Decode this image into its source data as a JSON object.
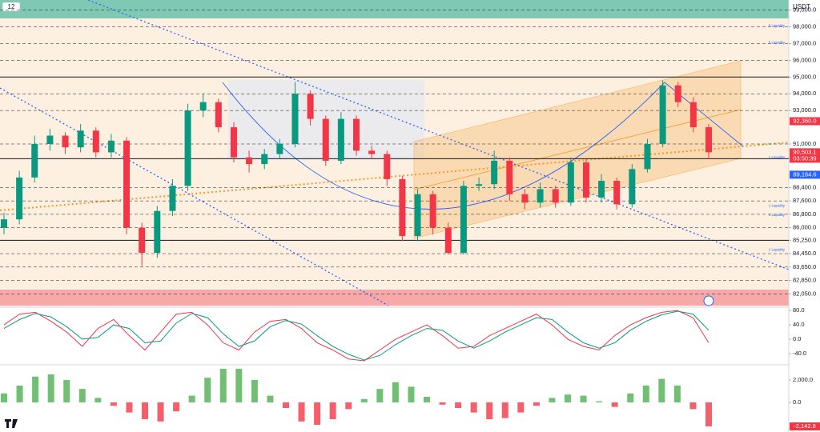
{
  "header": {
    "badge": "12",
    "currency": "USDT"
  },
  "chart_data": [
    {
      "type": "candlestick",
      "open": [
        86000,
        86500,
        89000,
        91000,
        91500,
        90800,
        91800,
        90500,
        91200,
        86000,
        84500,
        87000,
        88500,
        93000,
        93500,
        92000,
        90200,
        89800,
        90400,
        91000,
        94000,
        92500,
        90000,
        92500,
        90600,
        90400,
        88900,
        85500,
        88000,
        86000,
        84500,
        88500,
        88600,
        90000,
        88000,
        87500,
        88300,
        87500,
        89900,
        87800,
        88800,
        87400,
        89500,
        91000,
        94500,
        93500,
        92000
      ],
      "high": [
        86900,
        89400,
        91500,
        91900,
        91700,
        92200,
        92000,
        91600,
        91400,
        86300,
        87300,
        88900,
        93400,
        94000,
        93700,
        92300,
        90600,
        90700,
        91300,
        94700,
        94200,
        92700,
        92900,
        92700,
        90900,
        90600,
        89100,
        88300,
        88200,
        86300,
        88800,
        89000,
        90600,
        90200,
        88300,
        88700,
        88500,
        90200,
        90100,
        89200,
        89000,
        89800,
        91300,
        94800,
        94700,
        93800,
        92200
      ],
      "low": [
        85600,
        86200,
        88700,
        90600,
        90400,
        90500,
        90200,
        90200,
        85600,
        83700,
        84200,
        86700,
        88200,
        92600,
        91700,
        89900,
        89300,
        89500,
        90100,
        90800,
        92100,
        89700,
        89800,
        90300,
        90100,
        88500,
        85200,
        85200,
        85600,
        84400,
        84400,
        88200,
        88300,
        87600,
        87100,
        87200,
        87200,
        87300,
        87500,
        87500,
        87100,
        87200,
        89300,
        90800,
        93200,
        91700,
        90100
      ],
      "close": [
        86500,
        89000,
        91000,
        91500,
        90800,
        91800,
        90500,
        91200,
        86000,
        84500,
        87000,
        88500,
        93000,
        93500,
        92000,
        90200,
        89800,
        90400,
        91000,
        94000,
        92500,
        90000,
        92500,
        90600,
        90400,
        88900,
        85500,
        88000,
        86000,
        84500,
        88500,
        88600,
        90000,
        88000,
        87500,
        88300,
        87500,
        89900,
        87800,
        88800,
        87400,
        89500,
        91000,
        94500,
        93500,
        92000,
        90503.1
      ],
      "up_color": "#089981",
      "down_color": "#f23645",
      "ylim": [
        81300,
        99600
      ],
      "yticks": [
        {
          "value": 99000,
          "label": "99,000.0"
        },
        {
          "value": 98000,
          "label": "98,000.0"
        },
        {
          "value": 97000,
          "label": "97,000.0"
        },
        {
          "value": 96000,
          "label": "96,000.0"
        },
        {
          "value": 95000,
          "label": "95,000.0"
        },
        {
          "value": 94000,
          "label": "94,000.0"
        },
        {
          "value": 93000,
          "label": "93,000.0"
        },
        {
          "value": 91000,
          "label": "91,000.0"
        },
        {
          "value": 88400,
          "label": "88,400.0"
        },
        {
          "value": 87600,
          "label": "87,600.0"
        },
        {
          "value": 86800,
          "label": "86,800.0"
        },
        {
          "value": 86000,
          "label": "86,000.0"
        },
        {
          "value": 85250,
          "label": "85,250.0"
        },
        {
          "value": 84450,
          "label": "84,450.0"
        },
        {
          "value": 83650,
          "label": "83,650.0"
        },
        {
          "value": 82850,
          "label": "82,850.0"
        },
        {
          "value": 82050,
          "label": "82,050.0"
        }
      ],
      "levels": [
        95000,
        90120,
        85250
      ],
      "price_tags": [
        {
          "value": 92360,
          "label": "92,360.0",
          "color": "#f23645"
        },
        {
          "value": 90503.1,
          "label": "90,503.1",
          "sub": "03:50:39",
          "color": "#f23645"
        },
        {
          "value": 89164.6,
          "label": "89,164.6",
          "color": "#2962ff"
        }
      ],
      "annotations": [
        {
          "text": "5 Liquidity",
          "value": 98000
        },
        {
          "text": "5 Liquidity",
          "value": 97000
        },
        {
          "text": "1 Liquidity",
          "value": 90150
        },
        {
          "text": "1 Liquidity",
          "value": 87250
        },
        {
          "text": "1 Liquidity",
          "value": 86700
        },
        {
          "text": "1 Liquidity",
          "value": 84630
        }
      ]
    },
    {
      "type": "line",
      "series": [
        {
          "color": "#f23645",
          "values": [
            40,
            70,
            75,
            50,
            20,
            -20,
            30,
            55,
            10,
            -30,
            20,
            70,
            75,
            40,
            -10,
            -30,
            20,
            50,
            55,
            30,
            -10,
            -30,
            -55,
            -60,
            -30,
            0,
            20,
            40,
            10,
            -25,
            -20,
            10,
            30,
            50,
            70,
            40,
            0,
            -20,
            -30,
            10,
            40,
            60,
            75,
            80,
            60,
            -10
          ]
        },
        {
          "color": "#089981",
          "values": [
            30,
            55,
            72,
            62,
            35,
            0,
            5,
            40,
            30,
            -10,
            -5,
            45,
            72,
            60,
            15,
            -20,
            -5,
            35,
            52,
            42,
            10,
            -20,
            -42,
            -58,
            -45,
            -15,
            10,
            30,
            25,
            -5,
            -25,
            -5,
            20,
            40,
            60,
            55,
            20,
            -10,
            -25,
            -10,
            25,
            50,
            68,
            78,
            70,
            25
          ]
        }
      ],
      "ylim": [
        -69,
        87
      ],
      "yticks": [
        {
          "value": 80,
          "label": "80.0"
        },
        {
          "value": 40,
          "label": "40.0"
        },
        {
          "value": 0,
          "label": "0.0"
        },
        {
          "value": -40,
          "label": "-40.0"
        }
      ]
    },
    {
      "type": "bar",
      "values": [
        800,
        1500,
        2300,
        2500,
        2000,
        1200,
        400,
        -300,
        -900,
        -1500,
        -1700,
        -800,
        600,
        2200,
        3000,
        3000,
        2000,
        600,
        -500,
        -1700,
        -2000,
        -1500,
        -600,
        300,
        1200,
        1800,
        1400,
        500,
        -200,
        -500,
        -900,
        -1500,
        -1400,
        -900,
        -300,
        400,
        700,
        600,
        100,
        -400,
        800,
        1500,
        2100,
        1500,
        -600,
        -2142.8
      ],
      "value_labels": [
        null,
        null,
        null,
        null,
        null,
        null,
        null,
        null,
        null,
        null,
        null,
        null,
        null,
        null,
        null,
        null,
        null,
        null,
        null,
        null,
        null,
        null,
        null,
        null,
        null,
        null,
        null,
        null,
        null,
        null,
        null,
        null,
        null,
        null,
        null,
        null,
        null,
        null,
        null,
        null,
        null,
        null,
        null,
        null,
        null,
        "-2,142.8"
      ],
      "up_color": "#4caf50",
      "down_color": "#f23645",
      "ylim": [
        -2640,
        3210
      ],
      "yticks": [
        {
          "value": 2000,
          "label": "2,000.0"
        },
        {
          "value": 0,
          "label": "0.0"
        }
      ]
    }
  ]
}
